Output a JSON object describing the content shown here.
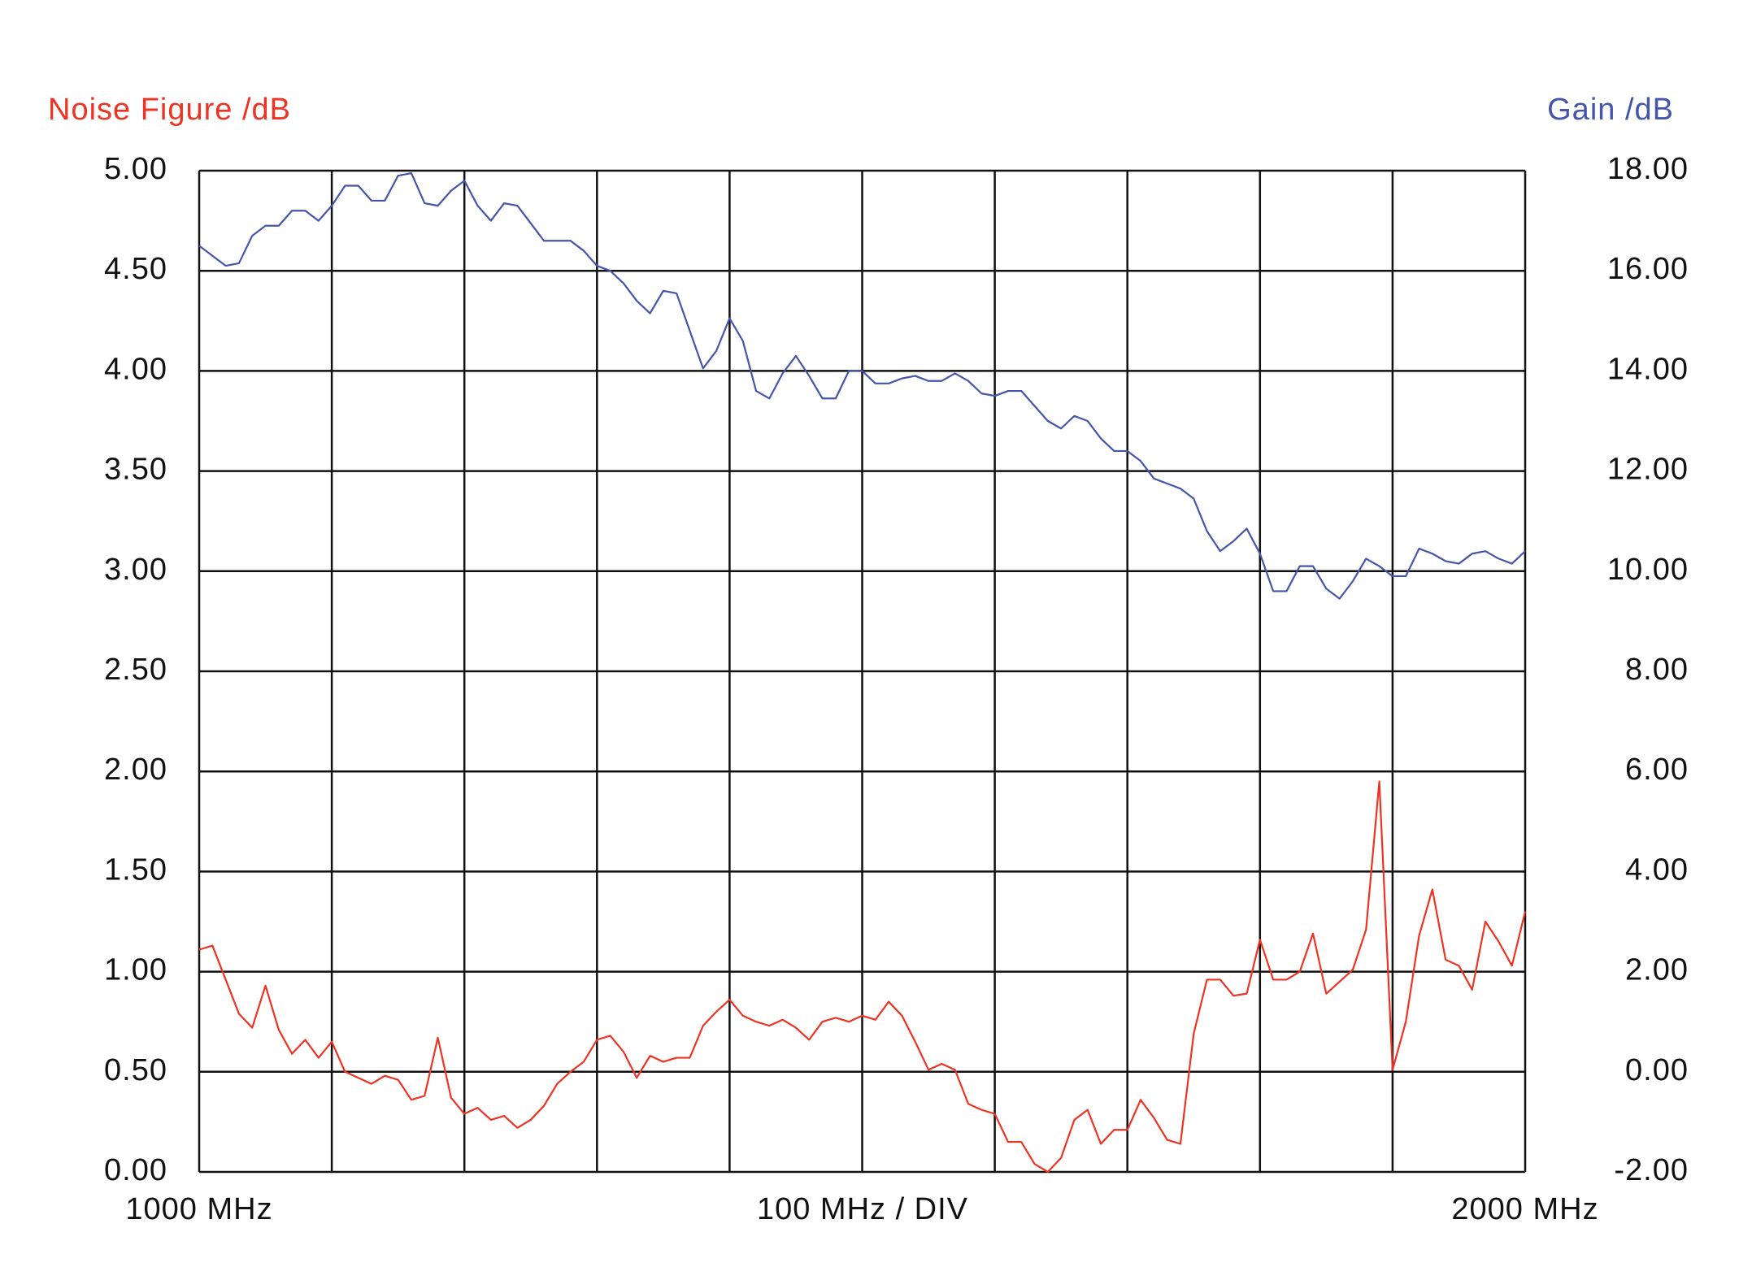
{
  "chart_data": {
    "type": "line",
    "xlabel": "100 MHz / DIV",
    "xlim": [
      1000,
      2000
    ],
    "xticks": [
      {
        "value": 1000,
        "label": "1000 MHz"
      },
      {
        "value": 2000,
        "label": "2000 MHz"
      }
    ],
    "xgrid": [
      1000,
      1100,
      1200,
      1300,
      1400,
      1500,
      1600,
      1700,
      1800,
      1900,
      2000
    ],
    "ylim": [
      0,
      5
    ],
    "yticks": [
      {
        "value": 0,
        "label": "0.00"
      },
      {
        "value": 0.5,
        "label": "0.50"
      },
      {
        "value": 1,
        "label": "1.00"
      },
      {
        "value": 1.5,
        "label": "1.50"
      },
      {
        "value": 2,
        "label": "2.00"
      },
      {
        "value": 2.5,
        "label": "2.50"
      },
      {
        "value": 3,
        "label": "3.00"
      },
      {
        "value": 3.5,
        "label": "3.50"
      },
      {
        "value": 4,
        "label": "4.00"
      },
      {
        "value": 4.5,
        "label": "4.50"
      },
      {
        "value": 5,
        "label": "5.00"
      }
    ],
    "y2lim": [
      -2,
      18
    ],
    "y2ticks": [
      {
        "value": -2,
        "label": "-2.00"
      },
      {
        "value": 0,
        "label": "0.00"
      },
      {
        "value": 2,
        "label": "2.00"
      },
      {
        "value": 4,
        "label": "4.00"
      },
      {
        "value": 6,
        "label": "6.00"
      },
      {
        "value": 8,
        "label": "8.00"
      },
      {
        "value": 10,
        "label": "10.00"
      },
      {
        "value": 12,
        "label": "12.00"
      },
      {
        "value": 14,
        "label": "14.00"
      },
      {
        "value": 16,
        "label": "16.00"
      },
      {
        "value": 18,
        "label": "18.00"
      }
    ],
    "grid": true,
    "x": [
      1000,
      1010,
      1020,
      1030,
      1040,
      1050,
      1060,
      1070,
      1080,
      1090,
      1100,
      1110,
      1120,
      1130,
      1140,
      1150,
      1160,
      1170,
      1180,
      1190,
      1200,
      1210,
      1220,
      1230,
      1240,
      1250,
      1260,
      1270,
      1280,
      1290,
      1300,
      1310,
      1320,
      1330,
      1340,
      1350,
      1360,
      1370,
      1380,
      1390,
      1400,
      1410,
      1420,
      1430,
      1440,
      1450,
      1460,
      1470,
      1480,
      1490,
      1500,
      1510,
      1520,
      1530,
      1540,
      1550,
      1560,
      1570,
      1580,
      1590,
      1600,
      1610,
      1620,
      1630,
      1640,
      1650,
      1660,
      1670,
      1680,
      1690,
      1700,
      1710,
      1720,
      1730,
      1740,
      1750,
      1760,
      1770,
      1780,
      1790,
      1800,
      1810,
      1820,
      1830,
      1840,
      1850,
      1860,
      1870,
      1880,
      1890,
      1900,
      1910,
      1920,
      1930,
      1940,
      1950,
      1960,
      1970,
      1980,
      1990,
      2000
    ],
    "series": [
      {
        "name": "Noise Figure /dB",
        "color": "#ee3322",
        "axis": "y",
        "values": [
          1.11,
          1.13,
          0.96,
          0.79,
          0.72,
          0.93,
          0.71,
          0.59,
          0.66,
          0.57,
          0.65,
          0.5,
          0.47,
          0.44,
          0.48,
          0.46,
          0.36,
          0.38,
          0.67,
          0.37,
          0.29,
          0.32,
          0.26,
          0.28,
          0.22,
          0.26,
          0.33,
          0.44,
          0.5,
          0.55,
          0.66,
          0.68,
          0.6,
          0.47,
          0.58,
          0.55,
          0.57,
          0.57,
          0.73,
          0.8,
          0.86,
          0.78,
          0.75,
          0.73,
          0.76,
          0.72,
          0.66,
          0.75,
          0.77,
          0.75,
          0.78,
          0.76,
          0.85,
          0.78,
          0.65,
          0.51,
          0.54,
          0.51,
          0.34,
          0.31,
          0.29,
          0.15,
          0.15,
          0.04,
          0.0,
          0.07,
          0.26,
          0.31,
          0.14,
          0.21,
          0.21,
          0.36,
          0.27,
          0.16,
          0.14,
          0.69,
          0.96,
          0.96,
          0.88,
          0.89,
          1.16,
          0.96,
          0.96,
          1.0,
          1.19,
          0.89,
          0.95,
          1.01,
          1.21,
          1.95,
          0.51,
          0.75,
          1.18,
          1.41,
          1.06,
          1.03,
          0.91,
          1.25,
          1.15,
          1.03,
          1.3
        ]
      },
      {
        "name": "Gain /dB",
        "color": "#4455aa",
        "axis": "y2",
        "values": [
          16.5,
          16.3,
          16.1,
          16.15,
          16.7,
          16.9,
          16.9,
          17.2,
          17.2,
          17.0,
          17.3,
          17.7,
          17.7,
          17.4,
          17.4,
          17.9,
          17.95,
          17.35,
          17.3,
          17.6,
          17.8,
          17.3,
          17.0,
          17.35,
          17.3,
          16.95,
          16.6,
          16.6,
          16.6,
          16.4,
          16.1,
          16.0,
          15.75,
          15.4,
          15.15,
          15.6,
          15.55,
          14.8,
          14.05,
          14.4,
          15.05,
          14.6,
          13.6,
          13.45,
          13.95,
          14.3,
          13.9,
          13.45,
          13.45,
          14.0,
          14.0,
          13.75,
          13.75,
          13.85,
          13.9,
          13.8,
          13.8,
          13.95,
          13.8,
          13.55,
          13.5,
          13.6,
          13.6,
          13.3,
          13.0,
          12.85,
          13.1,
          13.0,
          12.65,
          12.4,
          12.4,
          12.2,
          11.85,
          11.75,
          11.65,
          11.45,
          10.8,
          10.4,
          10.6,
          10.85,
          10.35,
          9.6,
          9.6,
          10.1,
          10.1,
          9.65,
          9.45,
          9.8,
          10.25,
          10.1,
          9.9,
          9.9,
          10.45,
          10.35,
          10.2,
          10.15,
          10.35,
          10.4,
          10.25,
          10.15,
          10.4
        ]
      }
    ]
  }
}
